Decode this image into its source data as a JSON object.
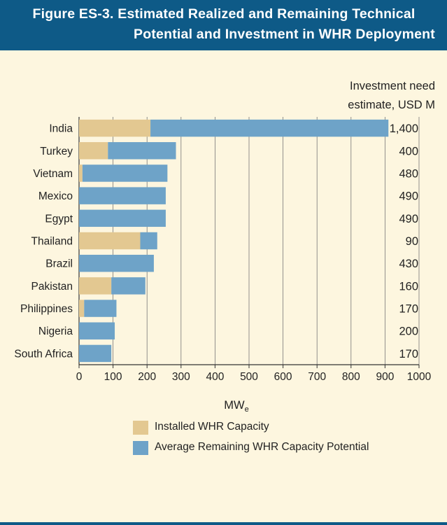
{
  "title": {
    "line1": "Figure ES-3. Estimated Realized and Remaining Technical",
    "line2": "Potential and Investment in WHR Deployment"
  },
  "colors": {
    "header": "#0e5a87",
    "background": "#fdf6df",
    "installed": "#e3c891",
    "remaining": "#6ea3c8"
  },
  "chart_data": {
    "type": "bar",
    "orientation": "horizontal",
    "stacked": true,
    "categories": [
      "India",
      "Turkey",
      "Vietnam",
      "Mexico",
      "Egypt",
      "Thailand",
      "Brazil",
      "Pakistan",
      "Philippines",
      "Nigeria",
      "South Africa"
    ],
    "series": [
      {
        "name": "Installed WHR Capacity",
        "values": [
          210,
          85,
          10,
          0,
          0,
          180,
          0,
          95,
          15,
          0,
          0
        ]
      },
      {
        "name": "Average Remaining WHR Capacity Potential",
        "values": [
          700,
          200,
          250,
          255,
          255,
          50,
          220,
          100,
          95,
          105,
          95
        ]
      }
    ],
    "investment_header": [
      "Investment need",
      "estimate, USD M"
    ],
    "investment": [
      "1,400",
      "400",
      "480",
      "490",
      "490",
      "90",
      "430",
      "160",
      "170",
      "200",
      "170"
    ],
    "xlabel": "MW",
    "xlabel_sub": "e",
    "xlim": [
      0,
      1000
    ],
    "xticks": [
      0,
      100,
      200,
      300,
      400,
      500,
      600,
      700,
      800,
      900,
      1000
    ],
    "grid": true,
    "legend_position": "bottom"
  }
}
